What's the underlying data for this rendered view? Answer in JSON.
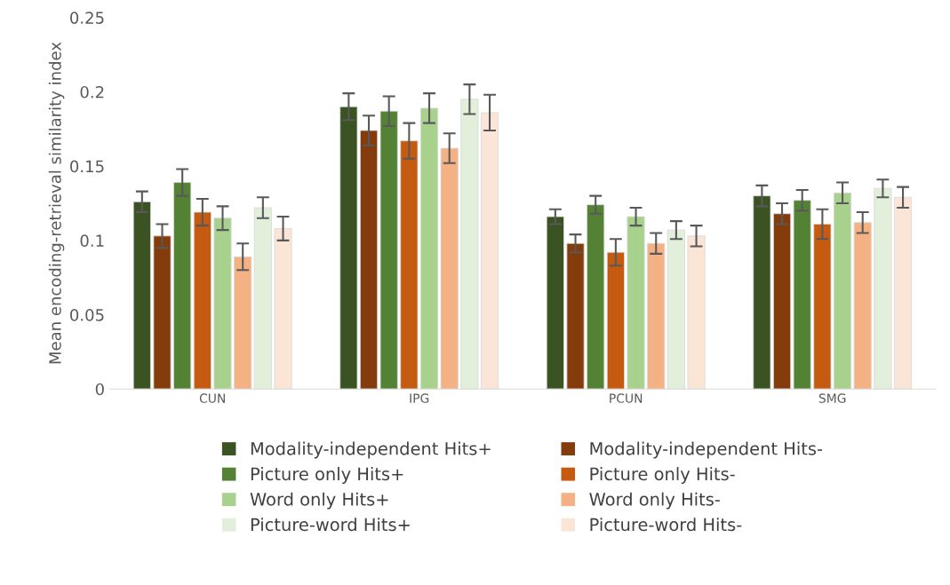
{
  "chart_data": {
    "type": "bar",
    "ylabel": "Mean encoding-retrieval similarity index",
    "categories": [
      "CUN",
      "IPG",
      "PCUN",
      "SMG"
    ],
    "series": [
      {
        "name": "Modality-independent Hits+",
        "color": "#3b5323",
        "values": [
          0.126,
          0.19,
          0.116,
          0.13
        ],
        "errors": [
          0.007,
          0.009,
          0.005,
          0.007
        ]
      },
      {
        "name": "Modality-independent Hits-",
        "color": "#843c0c",
        "values": [
          0.103,
          0.174,
          0.098,
          0.118
        ],
        "errors": [
          0.008,
          0.01,
          0.006,
          0.007
        ]
      },
      {
        "name": "Picture only Hits+",
        "color": "#548235",
        "values": [
          0.139,
          0.187,
          0.124,
          0.127
        ],
        "errors": [
          0.009,
          0.01,
          0.006,
          0.007
        ]
      },
      {
        "name": "Picture only Hits-",
        "color": "#c55a11",
        "values": [
          0.119,
          0.167,
          0.092,
          0.111
        ],
        "errors": [
          0.009,
          0.012,
          0.009,
          0.01
        ]
      },
      {
        "name": "Word only Hits+",
        "color": "#a9d18e",
        "values": [
          0.115,
          0.189,
          0.116,
          0.132
        ],
        "errors": [
          0.008,
          0.01,
          0.006,
          0.007
        ]
      },
      {
        "name": "Word only Hits-",
        "color": "#f4b183",
        "values": [
          0.089,
          0.162,
          0.098,
          0.112
        ],
        "errors": [
          0.009,
          0.01,
          0.007,
          0.007
        ]
      },
      {
        "name": "Picture-word Hits+",
        "color": "#e2efda",
        "values": [
          0.122,
          0.195,
          0.107,
          0.135
        ],
        "errors": [
          0.007,
          0.01,
          0.006,
          0.006
        ]
      },
      {
        "name": "Picture-word Hits-",
        "color": "#fbe5d6",
        "values": [
          0.108,
          0.186,
          0.103,
          0.129
        ],
        "errors": [
          0.008,
          0.012,
          0.007,
          0.007
        ]
      }
    ],
    "ylim": [
      0,
      0.25
    ],
    "yticks": [
      0,
      0.05,
      0.1,
      0.15,
      0.2,
      0.25
    ],
    "grid": false,
    "legend": "bottom"
  }
}
